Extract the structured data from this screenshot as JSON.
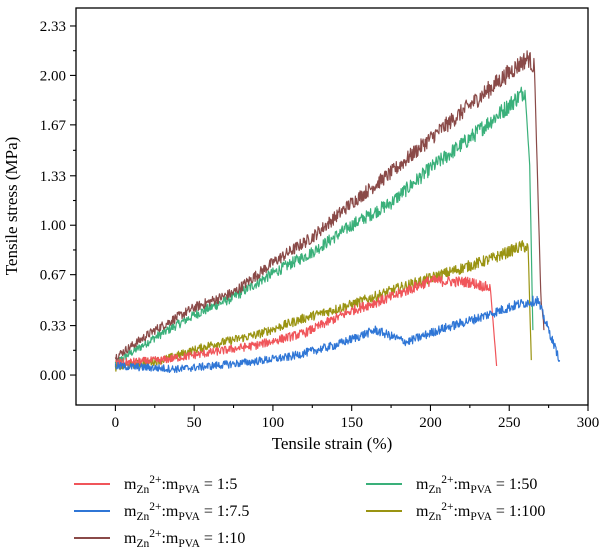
{
  "chart_data": {
    "type": "line",
    "title": "",
    "xlabel": "Tensile strain (%)",
    "ylabel": "Tensile stress (MPa)",
    "xlim": [
      -25,
      300
    ],
    "ylim": [
      -0.2,
      2.45
    ],
    "xticks": [
      0,
      50,
      100,
      150,
      200,
      250,
      300
    ],
    "xtick_labels": [
      "0",
      "50",
      "100",
      "150",
      "200",
      "250",
      "300"
    ],
    "yticks": [
      0.0,
      0.33,
      0.67,
      1.0,
      1.33,
      1.67,
      2.0,
      2.33
    ],
    "ytick_labels": [
      "0.00",
      "0.33",
      "0.67",
      "1.00",
      "1.33",
      "1.67",
      "2.00",
      "2.33"
    ],
    "grid": false,
    "legend_position": "bottom",
    "series": [
      {
        "name": "1:5",
        "legend": {
          "m1": "m",
          "sub1": "Zn",
          "sup": "2+",
          "mid": ":m",
          "sub2": "PVA",
          "ratio": " = 1:5"
        },
        "color": "#f0555a",
        "points": [
          [
            0,
            0.08
          ],
          [
            30,
            0.1
          ],
          [
            60,
            0.15
          ],
          [
            90,
            0.2
          ],
          [
            120,
            0.28
          ],
          [
            150,
            0.43
          ],
          [
            175,
            0.52
          ],
          [
            200,
            0.63
          ],
          [
            225,
            0.62
          ],
          [
            238,
            0.58
          ],
          [
            242,
            0.06
          ]
        ]
      },
      {
        "name": "1:7.5",
        "legend": {
          "m1": "m",
          "sub1": "Zn",
          "sup": "2+",
          "mid": ":m",
          "sub2": "PVA",
          "ratio": " = 1:7.5"
        },
        "color": "#2f76d6",
        "points": [
          [
            0,
            0.06
          ],
          [
            40,
            0.04
          ],
          [
            80,
            0.08
          ],
          [
            110,
            0.12
          ],
          [
            140,
            0.2
          ],
          [
            165,
            0.3
          ],
          [
            185,
            0.22
          ],
          [
            205,
            0.3
          ],
          [
            230,
            0.38
          ],
          [
            255,
            0.47
          ],
          [
            268,
            0.5
          ],
          [
            275,
            0.3
          ],
          [
            282,
            0.1
          ]
        ]
      },
      {
        "name": "1:10",
        "legend": {
          "m1": "m",
          "sub1": "Zn",
          "sup": "2+",
          "mid": ":m",
          "sub2": "PVA",
          "ratio": " = 1:10"
        },
        "color": "#8a4a48",
        "points": [
          [
            0,
            0.12
          ],
          [
            25,
            0.3
          ],
          [
            50,
            0.45
          ],
          [
            75,
            0.55
          ],
          [
            100,
            0.75
          ],
          [
            125,
            0.92
          ],
          [
            150,
            1.15
          ],
          [
            175,
            1.35
          ],
          [
            200,
            1.58
          ],
          [
            225,
            1.8
          ],
          [
            250,
            2.02
          ],
          [
            262,
            2.12
          ],
          [
            266,
            2.05
          ],
          [
            270,
            0.55
          ],
          [
            272,
            0.3
          ]
        ]
      },
      {
        "name": "1:50",
        "legend": {
          "m1": "m",
          "sub1": "Zn",
          "sup": "2+",
          "mid": ":m",
          "sub2": "PVA",
          "ratio": " = 1:50"
        },
        "color": "#3ab07a",
        "points": [
          [
            0,
            0.08
          ],
          [
            25,
            0.25
          ],
          [
            50,
            0.4
          ],
          [
            75,
            0.52
          ],
          [
            100,
            0.68
          ],
          [
            125,
            0.82
          ],
          [
            150,
            1.0
          ],
          [
            175,
            1.15
          ],
          [
            200,
            1.38
          ],
          [
            225,
            1.58
          ],
          [
            250,
            1.8
          ],
          [
            260,
            1.9
          ],
          [
            263,
            1.4
          ],
          [
            265,
            0.3
          ]
        ]
      },
      {
        "name": "1:100",
        "legend": {
          "m1": "m",
          "sub1": "Zn",
          "sup": "2+",
          "mid": ":m",
          "sub2": "PVA",
          "ratio": " = 1:100"
        },
        "color": "#9a9412",
        "points": [
          [
            0,
            0.05
          ],
          [
            30,
            0.1
          ],
          [
            60,
            0.2
          ],
          [
            90,
            0.27
          ],
          [
            120,
            0.38
          ],
          [
            150,
            0.47
          ],
          [
            180,
            0.58
          ],
          [
            210,
            0.68
          ],
          [
            240,
            0.78
          ],
          [
            258,
            0.86
          ],
          [
            262,
            0.85
          ],
          [
            264,
            0.1
          ]
        ]
      }
    ]
  }
}
